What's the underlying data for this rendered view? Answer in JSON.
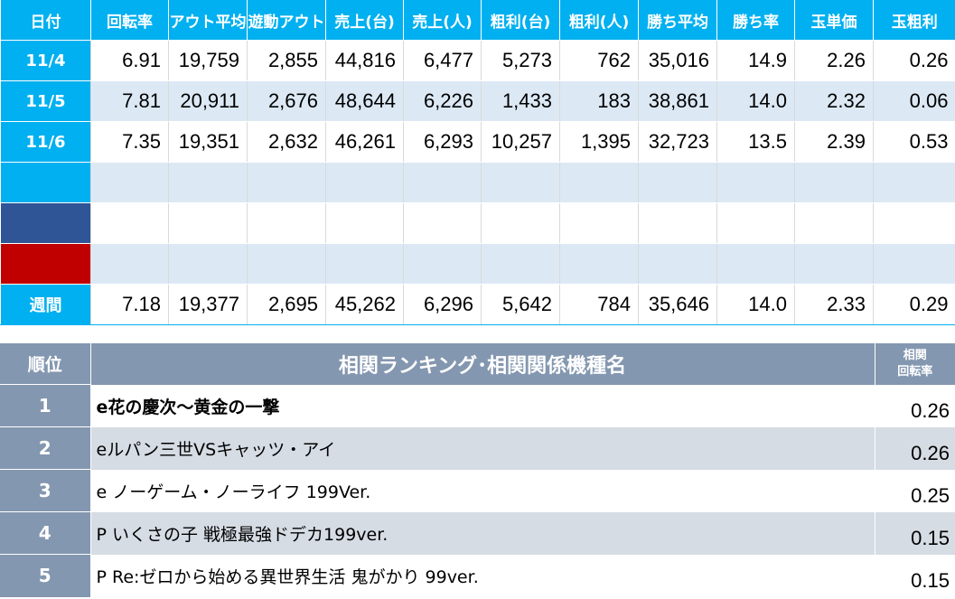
{
  "stats": {
    "headers": [
      "日付",
      "回転率",
      "アウト平均",
      "遊動アウト",
      "売上(台)",
      "売上(人)",
      "粗利(台)",
      "粗利(人)",
      "勝ち平均",
      "勝ち率",
      "玉単価",
      "玉粗利"
    ],
    "rows": [
      {
        "label": "11/4",
        "values": [
          "6.91",
          "19,759",
          "2,855",
          "44,816",
          "6,477",
          "5,273",
          "762",
          "35,016",
          "14.9",
          "2.26",
          "0.26"
        ]
      },
      {
        "label": "11/5",
        "values": [
          "7.81",
          "20,911",
          "2,676",
          "48,644",
          "6,226",
          "1,433",
          "183",
          "38,861",
          "14.0",
          "2.32",
          "0.06"
        ]
      },
      {
        "label": "11/6",
        "values": [
          "7.35",
          "19,351",
          "2,632",
          "46,261",
          "6,293",
          "10,257",
          "1,395",
          "32,723",
          "13.5",
          "2.39",
          "0.53"
        ]
      },
      {
        "label": "",
        "values": [
          "",
          "",
          "",
          "",
          "",
          "",
          "",
          "",
          "",
          "",
          ""
        ]
      },
      {
        "label": "",
        "values": [
          "",
          "",
          "",
          "",
          "",
          "",
          "",
          "",
          "",
          "",
          ""
        ]
      },
      {
        "label": "",
        "values": [
          "",
          "",
          "",
          "",
          "",
          "",
          "",
          "",
          "",
          "",
          ""
        ]
      }
    ],
    "weekly": {
      "label": "週間",
      "values": [
        "7.18",
        "19,377",
        "2,695",
        "45,262",
        "6,296",
        "5,642",
        "784",
        "35,646",
        "14.0",
        "2.33",
        "0.29"
      ]
    },
    "colors": {
      "header": "#00b0f0",
      "navy": "#2f5597",
      "red": "#c00000",
      "stripe": "#dce9f5"
    }
  },
  "ranking": {
    "header_pos": "順位",
    "header_name": "相関ランキング･相関関係機種名",
    "header_corr_line1": "相関",
    "header_corr_line2": "回転率",
    "items": [
      {
        "rank": "1",
        "name": "e花の慶次～黄金の一撃",
        "value": "0.26"
      },
      {
        "rank": "2",
        "name": "eルパン三世VSキャッツ・アイ",
        "value": "0.26"
      },
      {
        "rank": "3",
        "name": "e ノーゲーム・ノーライフ 199Ver.",
        "value": "0.25"
      },
      {
        "rank": "4",
        "name": "P いくさの子 戦極最強ドデカ199ver.",
        "value": "0.15"
      },
      {
        "rank": "5",
        "name": "P Re:ゼロから始める異世界生活 鬼がかり 99ver.",
        "value": "0.15"
      }
    ],
    "colors": {
      "header": "#8497b0",
      "stripe": "#d6dce4"
    }
  }
}
